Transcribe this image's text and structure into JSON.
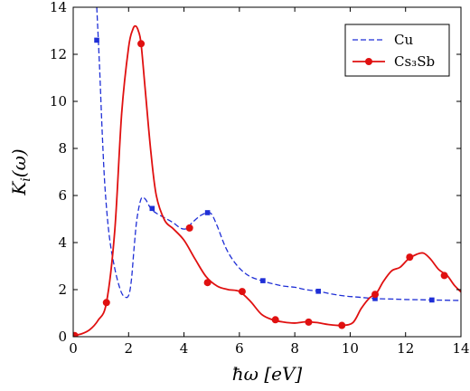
{
  "chart_data": {
    "type": "line",
    "xlabel": "ħω [eV]",
    "ylabel": "K_i(ω)",
    "xlim": [
      0,
      14
    ],
    "ylim": [
      0,
      14
    ],
    "x_ticks": [
      0,
      2,
      4,
      6,
      8,
      10,
      12,
      14
    ],
    "y_ticks": [
      0,
      2,
      4,
      6,
      8,
      10,
      12,
      14
    ],
    "grid": false,
    "legend_position": "top-right",
    "series": [
      {
        "name": "Cu",
        "color": "#1f2fd6",
        "line_style": "dashed",
        "marker": "square",
        "x": [
          0.85,
          0.95,
          1.05,
          1.15,
          1.3,
          1.5,
          1.7,
          1.85,
          2.0,
          2.1,
          2.2,
          2.3,
          2.45,
          2.6,
          2.8,
          3.0,
          3.3,
          3.6,
          3.9,
          4.1,
          4.3,
          4.6,
          4.85,
          5.0,
          5.2,
          5.5,
          5.8,
          6.1,
          6.4,
          6.8,
          7.2,
          7.6,
          8.0,
          8.4,
          8.85,
          9.3,
          9.8,
          10.3,
          10.9,
          11.5,
          12.0,
          12.5,
          12.95,
          13.4,
          14.0
        ],
        "y": [
          14.0,
          11.5,
          8.6,
          6.3,
          4.3,
          2.9,
          2.0,
          1.7,
          1.75,
          2.4,
          3.8,
          5.0,
          5.85,
          5.85,
          5.45,
          5.25,
          5.05,
          4.85,
          4.6,
          4.6,
          4.85,
          5.15,
          5.27,
          5.2,
          4.7,
          3.8,
          3.2,
          2.8,
          2.55,
          2.38,
          2.25,
          2.15,
          2.1,
          2.0,
          1.93,
          1.82,
          1.73,
          1.68,
          1.62,
          1.6,
          1.58,
          1.57,
          1.56,
          1.55,
          1.54
        ],
        "marker_x": [
          0.85,
          2.85,
          4.85,
          6.85,
          8.85,
          10.9,
          12.95
        ],
        "marker_y": [
          12.6,
          5.45,
          5.27,
          2.38,
          1.93,
          1.62,
          1.56
        ]
      },
      {
        "name": "Cs₃Sb",
        "color": "#e01010",
        "line_style": "solid",
        "marker": "circle",
        "x": [
          0.0,
          0.3,
          0.6,
          0.9,
          1.2,
          1.5,
          1.75,
          2.0,
          2.15,
          2.25,
          2.35,
          2.45,
          2.6,
          2.8,
          3.0,
          3.3,
          3.6,
          4.0,
          4.4,
          4.8,
          5.2,
          5.6,
          6.0,
          6.4,
          6.8,
          7.2,
          7.6,
          8.0,
          8.4,
          8.8,
          9.2,
          9.7,
          10.1,
          10.4,
          10.7,
          10.95,
          11.2,
          11.5,
          11.8,
          12.1,
          12.4,
          12.65,
          12.9,
          13.2,
          13.5,
          13.75,
          14.0
        ],
        "y": [
          0.05,
          0.12,
          0.3,
          0.7,
          1.45,
          4.5,
          9.5,
          12.3,
          13.05,
          13.2,
          13.0,
          12.45,
          10.5,
          7.9,
          6.0,
          4.95,
          4.6,
          4.1,
          3.3,
          2.55,
          2.15,
          2.0,
          1.92,
          1.5,
          0.95,
          0.72,
          0.62,
          0.58,
          0.63,
          0.6,
          0.52,
          0.48,
          0.6,
          1.2,
          1.65,
          1.85,
          2.35,
          2.8,
          2.95,
          3.3,
          3.5,
          3.55,
          3.3,
          2.85,
          2.6,
          2.2,
          1.9
        ],
        "marker_x": [
          0.05,
          1.2,
          2.45,
          4.2,
          4.85,
          6.1,
          7.3,
          8.5,
          9.7,
          10.9,
          12.15,
          13.4
        ],
        "marker_y": [
          0.05,
          1.45,
          12.45,
          4.62,
          2.3,
          1.92,
          0.72,
          0.62,
          0.48,
          1.8,
          3.38,
          2.6
        ]
      }
    ]
  }
}
